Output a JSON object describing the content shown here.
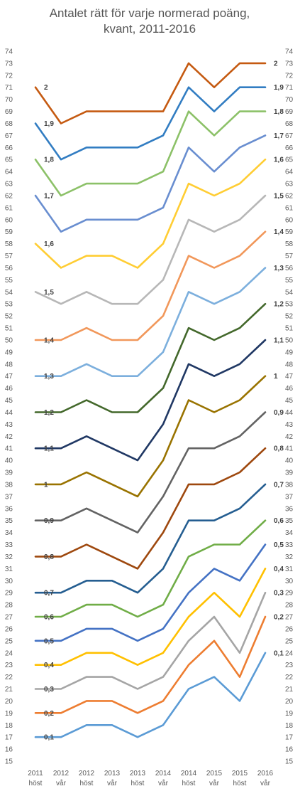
{
  "chart_data": {
    "type": "line",
    "title_lines": [
      "Antalet rätt för varje normerad poäng,",
      "kvant, 2011-2016"
    ],
    "xlabel": "",
    "ylabel": "",
    "ylim": [
      15,
      74
    ],
    "y_ticks": [
      15,
      16,
      17,
      18,
      19,
      20,
      21,
      22,
      23,
      24,
      25,
      26,
      27,
      28,
      29,
      30,
      31,
      32,
      33,
      34,
      35,
      36,
      37,
      38,
      39,
      40,
      41,
      42,
      43,
      44,
      45,
      46,
      47,
      48,
      49,
      50,
      51,
      52,
      53,
      54,
      55,
      56,
      57,
      58,
      59,
      60,
      61,
      62,
      63,
      64,
      65,
      66,
      67,
      68,
      69,
      70,
      71,
      72,
      73,
      74
    ],
    "y_axes": "left and right",
    "grid": false,
    "legend": "none",
    "categories": [
      [
        "2011",
        "höst"
      ],
      [
        "2012",
        "vår"
      ],
      [
        "2012",
        "höst"
      ],
      [
        "2013",
        "vår"
      ],
      [
        "2013",
        "höst"
      ],
      [
        "2014",
        "vår"
      ],
      [
        "2014",
        "höst"
      ],
      [
        "2015",
        "vår"
      ],
      [
        "2015",
        "höst"
      ],
      [
        "2016",
        "vår"
      ]
    ],
    "series": [
      {
        "name": "0,1",
        "color": "#5B9BD5",
        "values": [
          17,
          17,
          18,
          18,
          17,
          18,
          21,
          22,
          20,
          24
        ]
      },
      {
        "name": "0,2",
        "color": "#ED7D31",
        "values": [
          19,
          19,
          20,
          20,
          19,
          20,
          23,
          25,
          22,
          27
        ]
      },
      {
        "name": "0,3",
        "color": "#A5A5A5",
        "values": [
          21,
          21,
          22,
          22,
          21,
          22,
          25,
          27,
          24,
          29
        ]
      },
      {
        "name": "0,4",
        "color": "#FFC000",
        "values": [
          23,
          23,
          24,
          24,
          23,
          24,
          27,
          29,
          27,
          31
        ]
      },
      {
        "name": "0,5",
        "color": "#4472C4",
        "values": [
          25,
          25,
          26,
          26,
          25,
          26,
          29,
          31,
          30,
          33
        ]
      },
      {
        "name": "0,6",
        "color": "#70AD47",
        "values": [
          27,
          27,
          28,
          28,
          27,
          28,
          32,
          33,
          33,
          35
        ]
      },
      {
        "name": "0,7",
        "color": "#255E91",
        "values": [
          29,
          29,
          30,
          30,
          29,
          31,
          35,
          35,
          36,
          38
        ]
      },
      {
        "name": "0,8",
        "color": "#9E480E",
        "values": [
          32,
          32,
          33,
          32,
          31,
          34,
          38,
          38,
          39,
          41
        ]
      },
      {
        "name": "0,9",
        "color": "#636363",
        "values": [
          35,
          35,
          36,
          35,
          34,
          37,
          41,
          41,
          42,
          44
        ]
      },
      {
        "name": "1",
        "color": "#997300",
        "values": [
          38,
          38,
          39,
          38,
          37,
          40,
          45,
          44,
          45,
          47
        ]
      },
      {
        "name": "1,1",
        "color": "#203864",
        "values": [
          41,
          41,
          42,
          41,
          40,
          43,
          48,
          47,
          48,
          50
        ]
      },
      {
        "name": "1,2",
        "color": "#43682B",
        "values": [
          44,
          44,
          45,
          44,
          44,
          46,
          51,
          50,
          51,
          53
        ]
      },
      {
        "name": "1,3",
        "color": "#7CAFDD",
        "values": [
          47,
          47,
          48,
          47,
          47,
          49,
          54,
          53,
          54,
          56
        ]
      },
      {
        "name": "1,4",
        "color": "#F1975A",
        "values": [
          50,
          50,
          51,
          50,
          50,
          52,
          57,
          56,
          57,
          59
        ]
      },
      {
        "name": "1,5",
        "color": "#B7B7B7",
        "values": [
          54,
          53,
          54,
          53,
          53,
          55,
          60,
          59,
          60,
          62
        ]
      },
      {
        "name": "1,6",
        "color": "#FFCD33",
        "values": [
          58,
          56,
          57,
          57,
          56,
          58,
          63,
          62,
          63,
          65
        ]
      },
      {
        "name": "1,7",
        "color": "#698ED0",
        "values": [
          62,
          59,
          60,
          60,
          60,
          61,
          66,
          64,
          66,
          67
        ]
      },
      {
        "name": "1,8",
        "color": "#8CC168",
        "values": [
          65,
          62,
          63,
          63,
          63,
          64,
          69,
          67,
          69,
          69
        ]
      },
      {
        "name": "1,9",
        "color": "#327DC2",
        "values": [
          68,
          65,
          66,
          66,
          66,
          67,
          71,
          69,
          71,
          71
        ]
      },
      {
        "name": "2",
        "color": "#C55A11",
        "values": [
          71,
          68,
          69,
          69,
          69,
          69,
          73,
          71,
          73,
          73
        ]
      }
    ]
  }
}
